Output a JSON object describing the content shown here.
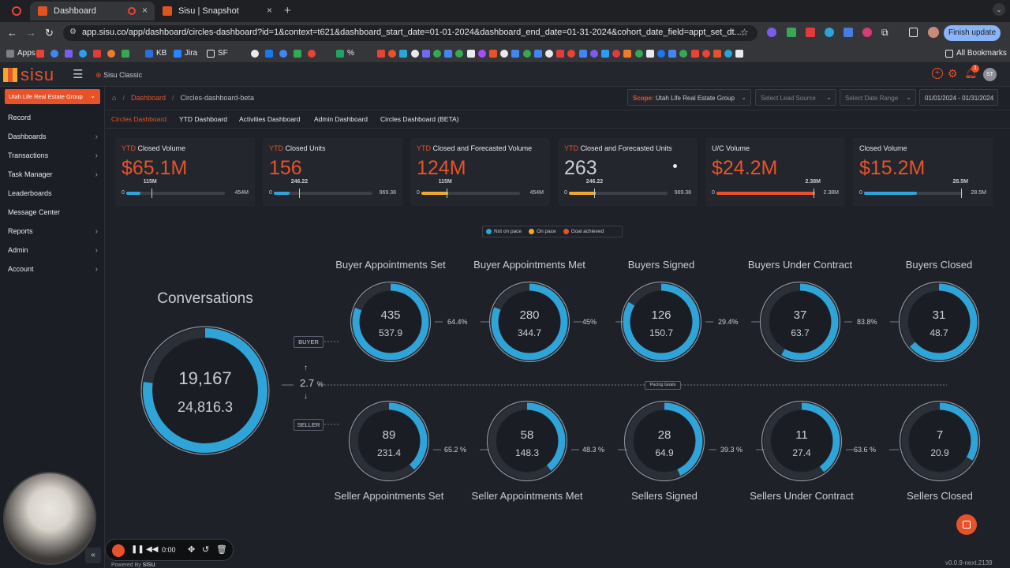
{
  "browser": {
    "tabs": [
      {
        "label": "Dashboard",
        "active": true
      },
      {
        "label": "Sisu | Snapshot",
        "active": false
      }
    ],
    "url": "app.sisu.co/app/dashboard/circles-dashboard?id=1&context=t621&dashboard_start_date=01-01-2024&dashboard_end_date=01-31-2024&cohort_date_field=appt_set_dt...",
    "finish_update": "Finish update",
    "profile_initials": "ST",
    "bookmarks": [
      {
        "label": "Apps",
        "color": "#7a7f88"
      },
      {
        "label": "KB",
        "color": "#2f6fdb"
      },
      {
        "label": "Jira",
        "color": "#2684ff"
      },
      {
        "label": "SF",
        "color": "#e8eaed"
      },
      {
        "label": "%",
        "color": "#1fa463"
      }
    ],
    "all_bookmarks": "All Bookmarks"
  },
  "app": {
    "logo": "sisu",
    "classic_link": "Sisu Classic",
    "avatar_initials": "ST",
    "notification_count": "1",
    "team_select": "Utah Life Real Estate Group",
    "sidebar": [
      {
        "label": "Record",
        "chevron": false
      },
      {
        "label": "Dashboards",
        "chevron": true
      },
      {
        "label": "Transactions",
        "chevron": true
      },
      {
        "label": "Task Manager",
        "chevron": true
      },
      {
        "label": "Leaderboards",
        "chevron": false
      },
      {
        "label": "Message Center",
        "chevron": false
      },
      {
        "label": "Reports",
        "chevron": true
      },
      {
        "label": "Admin",
        "chevron": true
      },
      {
        "label": "Account",
        "chevron": true
      }
    ],
    "breadcrumb": {
      "root": "Dashboard",
      "current": "Circles-dashboard-beta"
    },
    "filters": {
      "scope_prefix": "Scope:",
      "scope_value": "Utah Life Real Estate Group",
      "lead_source_placeholder": "Select Lead Source",
      "date_range_placeholder": "Select Date Range",
      "date_value": "01/01/2024 - 01/31/2024"
    },
    "tabs": [
      "Circles Dashboard",
      "YTD Dashboard",
      "Activities Dashboard",
      "Admin Dashboard",
      "Circles Dashboard (BETA)"
    ],
    "footer": {
      "powered_by": "Powered By",
      "brand": "sisu",
      "version": "v0.0.9-next.2139"
    },
    "recorder": {
      "time": "0:00"
    }
  },
  "kpis": [
    {
      "prefix": "YTD",
      "label": "Closed Volume",
      "value": "$65.1M",
      "accent": "#e8522a",
      "fill_color": "#2fa4d8",
      "progress": 0.143,
      "goal_marker": 0.253,
      "goal": "115M",
      "min": "0",
      "max": "454M"
    },
    {
      "prefix": "YTD",
      "label": "Closed Units",
      "value": "156",
      "accent": "#e8522a",
      "fill_color": "#2fa4d8",
      "progress": 0.161,
      "goal_marker": 0.254,
      "goal": "246.22",
      "min": "0",
      "max": "969.38"
    },
    {
      "prefix": "YTD",
      "label": "Closed and Forecasted Volume",
      "value": "124M",
      "accent": "#e8522a",
      "fill_color": "#f0a92b",
      "progress": 0.273,
      "goal_marker": 0.253,
      "goal": "115M",
      "min": "0",
      "max": "454M"
    },
    {
      "prefix": "YTD",
      "label": "Closed and Forecasted Units",
      "value": "263",
      "accent": "#c9ccd2",
      "fill_color": "#f0a92b",
      "progress": 0.271,
      "goal_marker": 0.254,
      "goal": "246.22",
      "min": "0",
      "max": "969.38"
    },
    {
      "prefix": "",
      "label": "U/C Volume",
      "value": "$24.2M",
      "accent": "#e8522a",
      "fill_color": "#e8522a",
      "progress": 1.0,
      "goal_marker": 0.98,
      "goal": "2.38M",
      "min": "0",
      "max": "2.38M"
    },
    {
      "prefix": "",
      "label": "Closed Volume",
      "value": "$15.2M",
      "accent": "#e8522a",
      "fill_color": "#2fa4d8",
      "progress": 0.533,
      "goal_marker": 0.98,
      "goal": "28.5M",
      "min": "0",
      "max": "28.5M"
    }
  ],
  "legend": [
    {
      "label": "Not on pace",
      "color": "#2fa4d8"
    },
    {
      "label": "On pace",
      "color": "#f0a92b"
    },
    {
      "label": "Goal achieved",
      "color": "#e8522a"
    }
  ],
  "funnel": {
    "conversations": {
      "title": "Conversations",
      "actual": "19,167",
      "goal": "24,816.3",
      "progress": 0.772
    },
    "buyer_label": "BUYER",
    "seller_label": "SELLER",
    "split_pct": "2.7",
    "split_unit": "%",
    "pacing_label": "Pacing Goals",
    "buyer": [
      {
        "title": "Buyer Appointments Set",
        "actual": "435",
        "goal": "537.9",
        "progress": 0.809,
        "conv": "64.4%"
      },
      {
        "title": "Buyer Appointments Met",
        "actual": "280",
        "goal": "344.7",
        "progress": 0.812,
        "conv": "45%"
      },
      {
        "title": "Buyers Signed",
        "actual": "126",
        "goal": "150.7",
        "progress": 0.836,
        "conv": "29.4%"
      },
      {
        "title": "Buyers Under Contract",
        "actual": "37",
        "goal": "63.7",
        "progress": 0.581,
        "conv": "83.8%"
      },
      {
        "title": "Buyers Closed",
        "actual": "31",
        "goal": "48.7",
        "progress": 0.637,
        "conv": ""
      }
    ],
    "seller": [
      {
        "title": "Seller Appointments Set",
        "actual": "89",
        "goal": "231.4",
        "progress": 0.385,
        "conv": "65.2 %"
      },
      {
        "title": "Seller Appointments Met",
        "actual": "58",
        "goal": "148.3",
        "progress": 0.391,
        "conv": "48.3 %"
      },
      {
        "title": "Sellers Signed",
        "actual": "28",
        "goal": "64.9",
        "progress": 0.431,
        "conv": "39.3 %"
      },
      {
        "title": "Sellers Under Contract",
        "actual": "11",
        "goal": "27.4",
        "progress": 0.401,
        "conv": "63.6 %"
      },
      {
        "title": "Sellers Closed",
        "actual": "7",
        "goal": "20.9",
        "progress": 0.335,
        "conv": ""
      }
    ]
  }
}
